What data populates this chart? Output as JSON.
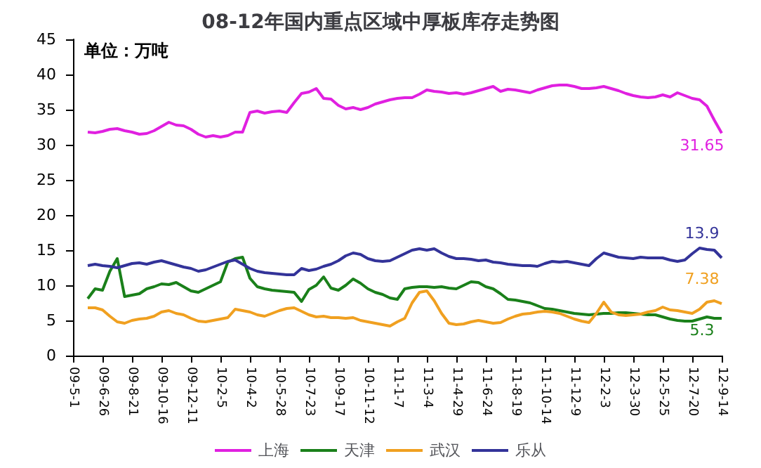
{
  "chart_data": {
    "type": "line",
    "title": "08-12年国内重点区域中厚板库存走势图",
    "annotations": [
      "单位：万吨"
    ],
    "categories": [
      "09-5-1",
      null,
      null,
      null,
      "09-6-26",
      null,
      null,
      null,
      "09-8-21",
      null,
      null,
      null,
      "09-10-16",
      null,
      null,
      null,
      "09-12-11",
      null,
      null,
      null,
      "10-2-5",
      null,
      null,
      null,
      "10-4-2",
      null,
      null,
      null,
      "10-5-28",
      null,
      null,
      null,
      "10-7-23",
      null,
      null,
      null,
      "10-9-17",
      null,
      null,
      null,
      "10-11-12",
      null,
      null,
      null,
      "11-1-7",
      null,
      null,
      null,
      "11-3-4",
      null,
      null,
      null,
      "11-4-29",
      null,
      null,
      null,
      "11-6-24",
      null,
      null,
      null,
      "11-8-19",
      null,
      null,
      null,
      "11-10-14",
      null,
      null,
      null,
      "11-12-9",
      null,
      null,
      null,
      "12-2-3",
      null,
      null,
      null,
      "12-3-30",
      null,
      null,
      null,
      "12-5-25",
      null,
      null,
      null,
      "12-7-20",
      null,
      null,
      null,
      "12-9-14"
    ],
    "series": [
      {
        "name": "上海",
        "color": "#e020e0",
        "values": [
          null,
          null,
          31.8,
          31.7,
          31.9,
          32.2,
          32.3,
          32.0,
          31.8,
          31.5,
          31.6,
          32.0,
          32.6,
          33.2,
          32.8,
          32.7,
          32.2,
          31.5,
          31.1,
          31.3,
          31.1,
          31.3,
          31.8,
          31.8,
          34.6,
          34.8,
          34.5,
          34.7,
          34.8,
          34.6,
          36.0,
          37.3,
          37.5,
          38.0,
          36.6,
          36.5,
          35.6,
          35.1,
          35.3,
          35.0,
          35.3,
          35.8,
          36.1,
          36.4,
          36.6,
          36.7,
          36.7,
          37.2,
          37.8,
          37.6,
          37.5,
          37.3,
          37.4,
          37.2,
          37.4,
          37.7,
          38.0,
          38.3,
          37.6,
          37.9,
          37.8,
          37.6,
          37.4,
          37.8,
          38.1,
          38.4,
          38.5,
          38.5,
          38.3,
          38.0,
          38.0,
          38.1,
          38.3,
          38.0,
          37.7,
          37.3,
          37.0,
          36.8,
          36.7,
          36.8,
          37.1,
          36.8,
          37.4,
          37.0,
          36.6,
          36.4,
          35.5,
          33.5,
          31.65
        ],
        "value_labels": [
          null,
          null,
          null,
          null,
          null,
          null,
          null,
          null,
          null,
          null,
          null,
          null,
          null,
          null,
          null,
          null,
          null,
          null,
          null,
          null,
          null,
          null,
          null,
          null,
          null,
          null,
          null,
          null,
          null,
          null,
          null,
          null,
          null,
          null,
          null,
          null,
          null,
          null,
          null,
          null,
          null,
          null,
          null,
          null,
          null,
          null,
          null,
          null,
          null,
          null,
          null,
          null,
          null,
          null,
          null,
          null,
          null,
          null,
          null,
          null,
          null,
          null,
          null,
          null,
          null,
          null,
          null,
          null,
          null,
          null,
          null,
          null,
          null,
          null,
          null,
          null,
          null,
          null,
          null,
          null,
          null,
          null,
          null,
          null,
          null,
          null,
          null,
          null,
          "31.65"
        ]
      },
      {
        "name": "天津",
        "color": "#1a801a",
        "values": [
          null,
          null,
          8.1,
          9.5,
          9.3,
          12.0,
          13.8,
          8.4,
          8.6,
          8.8,
          9.5,
          9.8,
          10.2,
          10.1,
          10.4,
          9.8,
          9.2,
          9.0,
          9.5,
          10.0,
          10.5,
          13.3,
          13.8,
          14.0,
          11.0,
          9.8,
          9.5,
          9.3,
          9.2,
          9.1,
          9.0,
          7.7,
          9.4,
          10.0,
          11.2,
          9.6,
          9.3,
          10.0,
          10.9,
          10.3,
          9.5,
          9.0,
          8.7,
          8.2,
          8.0,
          9.5,
          9.7,
          9.8,
          9.8,
          9.7,
          9.8,
          9.6,
          9.5,
          10.0,
          10.5,
          10.4,
          9.8,
          9.5,
          8.8,
          8.0,
          7.9,
          7.7,
          7.5,
          7.1,
          6.7,
          6.6,
          6.4,
          6.2,
          6.0,
          5.9,
          5.8,
          5.9,
          6.0,
          6.0,
          6.1,
          6.1,
          6.0,
          5.9,
          5.8,
          5.8,
          5.5,
          5.2,
          5.0,
          4.9,
          4.9,
          5.2,
          5.5,
          5.3,
          5.3
        ],
        "value_labels": [
          null,
          null,
          null,
          null,
          null,
          null,
          null,
          null,
          null,
          null,
          null,
          null,
          null,
          null,
          null,
          null,
          null,
          null,
          null,
          null,
          null,
          null,
          null,
          null,
          null,
          null,
          null,
          null,
          null,
          null,
          null,
          null,
          null,
          null,
          null,
          null,
          null,
          null,
          null,
          null,
          null,
          null,
          null,
          null,
          null,
          null,
          null,
          null,
          null,
          null,
          null,
          null,
          null,
          null,
          null,
          null,
          null,
          null,
          null,
          null,
          null,
          null,
          null,
          null,
          null,
          null,
          null,
          null,
          null,
          null,
          null,
          null,
          null,
          null,
          null,
          null,
          null,
          null,
          null,
          null,
          null,
          null,
          null,
          null,
          null,
          null,
          null,
          null,
          "5.3"
        ]
      },
      {
        "name": "武汉",
        "color": "#f0a020",
        "values": [
          null,
          null,
          6.8,
          6.8,
          6.5,
          5.6,
          4.8,
          4.6,
          5.0,
          5.2,
          5.3,
          5.6,
          6.2,
          6.4,
          6.0,
          5.8,
          5.3,
          4.9,
          4.8,
          5.0,
          5.2,
          5.4,
          6.6,
          6.4,
          6.2,
          5.8,
          5.6,
          6.0,
          6.4,
          6.7,
          6.8,
          6.3,
          5.8,
          5.5,
          5.6,
          5.4,
          5.4,
          5.3,
          5.4,
          5.0,
          4.8,
          4.6,
          4.4,
          4.2,
          4.8,
          5.3,
          7.5,
          9.0,
          9.2,
          7.8,
          6.0,
          4.6,
          4.4,
          4.5,
          4.8,
          5.0,
          4.8,
          4.6,
          4.7,
          5.2,
          5.6,
          5.9,
          6.0,
          6.2,
          6.3,
          6.2,
          6.0,
          5.6,
          5.2,
          4.9,
          4.7,
          6.0,
          7.6,
          6.2,
          5.8,
          5.7,
          5.8,
          5.9,
          6.2,
          6.4,
          6.9,
          6.5,
          6.4,
          6.2,
          6.0,
          6.6,
          7.6,
          7.8,
          7.38
        ],
        "value_labels": [
          null,
          null,
          null,
          null,
          null,
          null,
          null,
          null,
          null,
          null,
          null,
          null,
          null,
          null,
          null,
          null,
          null,
          null,
          null,
          null,
          null,
          null,
          null,
          null,
          null,
          null,
          null,
          null,
          null,
          null,
          null,
          null,
          null,
          null,
          null,
          null,
          null,
          null,
          null,
          null,
          null,
          null,
          null,
          null,
          null,
          null,
          null,
          null,
          null,
          null,
          null,
          null,
          null,
          null,
          null,
          null,
          null,
          null,
          null,
          null,
          null,
          null,
          null,
          null,
          null,
          null,
          null,
          null,
          null,
          null,
          null,
          null,
          null,
          null,
          null,
          null,
          null,
          null,
          null,
          null,
          null,
          null,
          null,
          null,
          null,
          null,
          null,
          null,
          "7.38"
        ]
      },
      {
        "name": "乐从",
        "color": "#333399",
        "values": [
          null,
          null,
          12.8,
          13.0,
          12.8,
          12.7,
          12.5,
          12.8,
          13.1,
          13.2,
          13.0,
          13.3,
          13.5,
          13.2,
          12.9,
          12.6,
          12.4,
          12.0,
          12.2,
          12.6,
          13.0,
          13.4,
          13.6,
          13.0,
          12.4,
          12.0,
          11.8,
          11.7,
          11.6,
          11.5,
          11.5,
          12.4,
          12.1,
          12.3,
          12.7,
          13.0,
          13.5,
          14.2,
          14.6,
          14.4,
          13.8,
          13.5,
          13.4,
          13.5,
          14.0,
          14.5,
          15.0,
          15.2,
          15.0,
          15.2,
          14.6,
          14.1,
          13.8,
          13.8,
          13.7,
          13.5,
          13.6,
          13.3,
          13.2,
          13.0,
          12.9,
          12.8,
          12.8,
          12.7,
          13.1,
          13.4,
          13.3,
          13.4,
          13.2,
          13.0,
          12.8,
          13.8,
          14.6,
          14.3,
          14.0,
          13.9,
          13.8,
          14.0,
          13.9,
          13.9,
          13.9,
          13.6,
          13.4,
          13.6,
          14.5,
          15.3,
          15.1,
          15.0,
          13.9
        ],
        "value_labels": [
          null,
          null,
          null,
          null,
          null,
          null,
          null,
          null,
          null,
          null,
          null,
          null,
          null,
          null,
          null,
          null,
          null,
          null,
          null,
          null,
          null,
          null,
          null,
          null,
          null,
          null,
          null,
          null,
          null,
          null,
          null,
          null,
          null,
          null,
          null,
          null,
          null,
          null,
          null,
          null,
          null,
          null,
          null,
          null,
          null,
          null,
          null,
          null,
          null,
          null,
          null,
          null,
          null,
          null,
          null,
          null,
          null,
          null,
          null,
          null,
          null,
          null,
          null,
          null,
          null,
          null,
          null,
          null,
          null,
          null,
          null,
          null,
          null,
          null,
          null,
          null,
          null,
          null,
          null,
          null,
          null,
          null,
          null,
          null,
          null,
          null,
          null,
          null,
          "13.9"
        ]
      }
    ],
    "ylim": [
      0,
      45
    ],
    "yticks": [
      0,
      5,
      10,
      15,
      20,
      25,
      30,
      35,
      40,
      45
    ],
    "grid": false,
    "legend": "bottom"
  }
}
